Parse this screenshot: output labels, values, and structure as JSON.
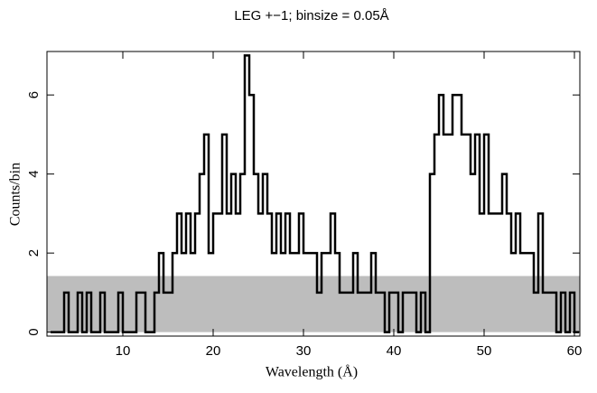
{
  "chart_data": {
    "type": "step",
    "title": "LEG +−1; binsize = 0.05Å",
    "xlabel": "Wavelength (Å)",
    "ylabel": "Counts/bin",
    "x": [
      2,
      2.5,
      3,
      3.5,
      4,
      4.5,
      5,
      5.5,
      6,
      6.5,
      7,
      7.5,
      8,
      8.5,
      9,
      9.5,
      10,
      10.5,
      11,
      11.5,
      12,
      12.5,
      13,
      13.5,
      14,
      14.5,
      15,
      15.5,
      16,
      16.5,
      17,
      17.5,
      18,
      18.5,
      19,
      19.5,
      20,
      20.5,
      21,
      21.5,
      22,
      22.5,
      23,
      23.5,
      24,
      24.5,
      25,
      25.5,
      26,
      26.5,
      27,
      27.5,
      28,
      28.5,
      29,
      29.5,
      30,
      30.5,
      31,
      31.5,
      32,
      32.5,
      33,
      33.5,
      34,
      34.5,
      35,
      35.5,
      36,
      36.5,
      37,
      37.5,
      38,
      38.5,
      39,
      39.5,
      40,
      40.5,
      41,
      41.5,
      42,
      42.5,
      43,
      43.5,
      44,
      44.5,
      45,
      45.5,
      46,
      46.5,
      47,
      47.5,
      48,
      48.5,
      49,
      49.5,
      50,
      50.5,
      51,
      51.5,
      52,
      52.5,
      53,
      53.5,
      54,
      54.5,
      55,
      55.5,
      56,
      56.5,
      57,
      57.5,
      58,
      58.5,
      59,
      59.5,
      60
    ],
    "series": [
      {
        "color": "#000000",
        "values": [
          0,
          0,
          0,
          1,
          0,
          0,
          1,
          0,
          1,
          0,
          0,
          1,
          0,
          0,
          0,
          1,
          0,
          0,
          0,
          1,
          1,
          0,
          0,
          1,
          2,
          1,
          1,
          2,
          3,
          2,
          3,
          2,
          3,
          4,
          5,
          2,
          3,
          3,
          5,
          3,
          4,
          3,
          4,
          7,
          6,
          4,
          3,
          4,
          3,
          2,
          3,
          2,
          3,
          2,
          2,
          3,
          2,
          2,
          2,
          1,
          2,
          2,
          3,
          2,
          1,
          1,
          1,
          2,
          1,
          1,
          1,
          2,
          1,
          1,
          0,
          1,
          1,
          0,
          1,
          1,
          1,
          0,
          1,
          0,
          4,
          5,
          6,
          5,
          5,
          6,
          6,
          5,
          5,
          4,
          5,
          3,
          5,
          3,
          3,
          3,
          4,
          3,
          2,
          3,
          2,
          2,
          2,
          1,
          3,
          1,
          1,
          1,
          0,
          1,
          0,
          1,
          0
        ]
      }
    ],
    "error_level": 1.42,
    "error_color": "#bdbdbd",
    "xlim": [
      1.6,
      60.6
    ],
    "xticks": [
      10,
      20,
      30,
      40,
      50,
      60
    ],
    "ylim": [
      -0.1,
      7.1
    ],
    "yticks": [
      0,
      2,
      4,
      6
    ]
  }
}
